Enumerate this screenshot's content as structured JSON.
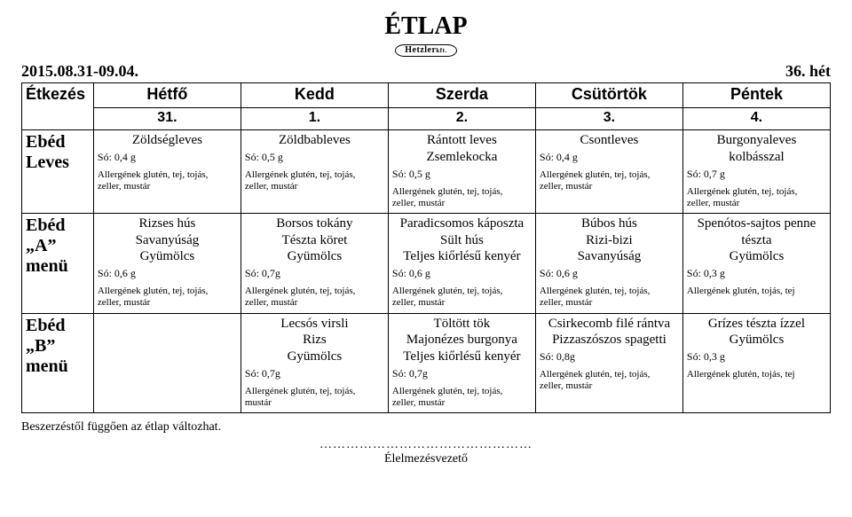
{
  "title": "ÉTLAP",
  "logo_text": "Hetzler",
  "logo_suffix": "kft.",
  "date_range": "2015.08.31-09.04.",
  "week_label": "36. hét",
  "header": {
    "etkezes": "Étkezés",
    "days": [
      "Hétfő",
      "Kedd",
      "Szerda",
      "Csütörtök",
      "Péntek"
    ],
    "day_numbers": [
      "31.",
      "1.",
      "2.",
      "3.",
      "4."
    ]
  },
  "rows": [
    {
      "label": "Ebéd\nLeves",
      "cells": [
        {
          "dish": "Zöldségleves",
          "salt": "Só: 0,4 g",
          "allergens": "Allergének glutén, tej, tojás,\nzeller, mustár"
        },
        {
          "dish": "Zöldbableves",
          "salt": "Só: 0,5 g",
          "allergens": "Allergének glutén, tej, tojás,\nzeller, mustár"
        },
        {
          "dish": "Rántott leves\nZsemlekocka",
          "salt": "Só: 0,5 g",
          "allergens": "Allergének glutén, tej, tojás,\nzeller, mustár"
        },
        {
          "dish": "Csontleves",
          "salt": "Só: 0,4 g",
          "allergens": "Allergének glutén, tej, tojás,\nzeller, mustár"
        },
        {
          "dish": "Burgonyaleves\nkolbásszal",
          "salt": "Só: 0,7 g",
          "allergens": "Allergének glutén, tej, tojás,\nzeller, mustár"
        }
      ]
    },
    {
      "label": "Ebéd\n„A”\nmenü",
      "cells": [
        {
          "dish": "Rizses hús\nSavanyúság\nGyümölcs",
          "salt": "Só: 0,6 g",
          "allergens": "Allergének glutén, tej, tojás,\nzeller, mustár"
        },
        {
          "dish": "Borsos tokány\nTészta köret\nGyümölcs",
          "salt": "Só: 0,7g",
          "allergens": "Allergének glutén, tej, tojás,\nzeller, mustár"
        },
        {
          "dish": "Paradicsomos káposzta\nSült hús\nTeljes kiőrlésű kenyér",
          "salt": "Só: 0,6 g",
          "allergens": "Allergének glutén, tej, tojás,\nzeller, mustár"
        },
        {
          "dish": "Búbos hús\nRizi-bizi\nSavanyúság",
          "salt": "Só: 0,6 g",
          "allergens": "Allergének glutén, tej, tojás,\nzeller, mustár"
        },
        {
          "dish": "Spenótos-sajtos penne\ntészta\nGyümölcs",
          "salt": "Só: 0,3 g",
          "allergens": "Allergének glutén, tojás, tej"
        }
      ]
    },
    {
      "label": "Ebéd\n„B”\nmenü",
      "cells": [
        {
          "empty": true
        },
        {
          "dish": "Lecsós virsli\nRizs\nGyümölcs",
          "salt": "Só: 0,7g",
          "allergens": "Allergének glutén, tej, tojás,\nmustár"
        },
        {
          "dish": "Töltött tök\nMajonézes burgonya\nTeljes kiőrlésű kenyér",
          "salt": "Só: 0,7g",
          "allergens": "Allergének glutén, tej, tojás,\nzeller, mustár"
        },
        {
          "dish": "Csirkecomb filé rántva\nPizzaszószos spagetti",
          "salt": "Só: 0,8g",
          "allergens": "Allergének glutén, tej, tojás,\nzeller, mustár"
        },
        {
          "dish": "Grízes tészta ízzel\nGyümölcs",
          "salt": "Só: 0,3 g",
          "allergens": "Allergének glutén, tojás, tej"
        }
      ]
    }
  ],
  "footnote": "Beszerzéstől függően az étlap változhat.",
  "signature_dots": "…………………………………………",
  "signature_label": "Élelmezésvezető",
  "colors": {
    "text": "#000000",
    "background": "#ffffff",
    "border": "#000000"
  }
}
